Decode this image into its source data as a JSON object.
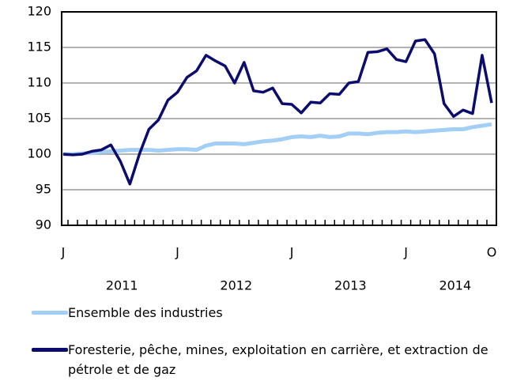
{
  "chart_data": {
    "type": "line",
    "categories": [
      "J",
      null,
      null,
      null,
      null,
      null,
      null,
      null,
      null,
      null,
      null,
      null,
      "J",
      null,
      null,
      null,
      null,
      null,
      null,
      null,
      null,
      null,
      null,
      null,
      "J",
      null,
      null,
      null,
      null,
      null,
      null,
      null,
      null,
      null,
      null,
      null,
      "J",
      null,
      null,
      null,
      null,
      null,
      null,
      null,
      null,
      "O"
    ],
    "x_groups": [
      "2011",
      "2012",
      "2013",
      "2014"
    ],
    "series": [
      {
        "name": "Ensemble des industries",
        "color": "#a3cef5",
        "values": [
          100.0,
          100.0,
          100.1,
          100.2,
          100.3,
          100.4,
          100.5,
          100.6,
          100.6,
          100.6,
          100.5,
          100.6,
          100.7,
          100.7,
          100.6,
          101.2,
          101.5,
          101.5,
          101.5,
          101.4,
          101.6,
          101.8,
          101.9,
          102.1,
          102.4,
          102.5,
          102.4,
          102.6,
          102.4,
          102.5,
          102.9,
          102.9,
          102.8,
          103.0,
          103.1,
          103.1,
          103.2,
          103.1,
          103.2,
          103.3,
          103.4,
          103.5,
          103.5,
          103.8,
          104.0,
          104.2
        ]
      },
      {
        "name": "Foresterie, pêche, mines, exploitation en carrière, et extraction de pétrole et de gaz",
        "color": "#0c0c6e",
        "values": [
          100.0,
          99.9,
          100.0,
          100.4,
          100.6,
          101.3,
          99.0,
          95.8,
          100.0,
          103.5,
          104.8,
          107.6,
          108.7,
          110.8,
          111.7,
          113.9,
          113.1,
          112.4,
          110.0,
          112.9,
          108.9,
          108.7,
          109.3,
          107.1,
          107.0,
          105.8,
          107.3,
          107.2,
          108.5,
          108.4,
          110.0,
          110.2,
          114.3,
          114.4,
          114.8,
          113.3,
          113.0,
          115.9,
          116.1,
          114.1,
          107.1,
          105.3,
          106.2,
          105.7,
          113.9,
          107.2
        ]
      }
    ],
    "ylim": [
      90,
      120
    ],
    "yticks": [
      90,
      95,
      100,
      105,
      110,
      115,
      120
    ],
    "grid": true
  }
}
